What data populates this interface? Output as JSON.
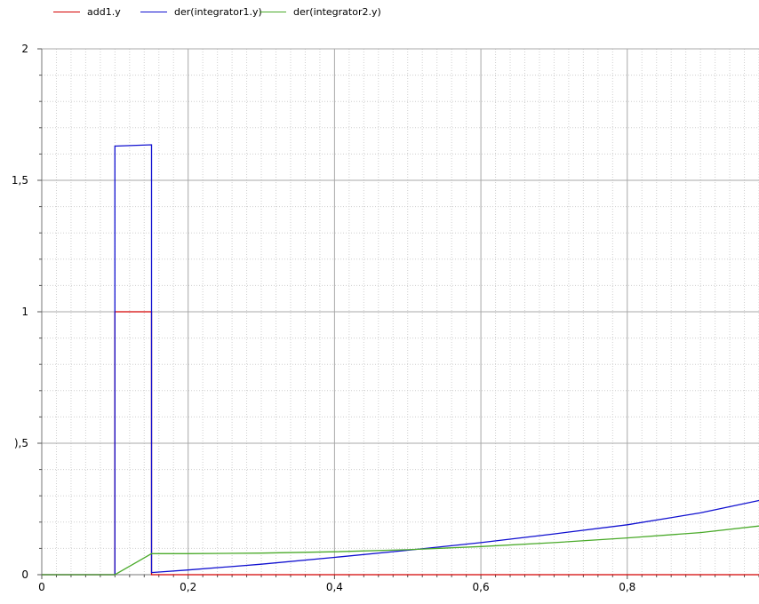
{
  "chart_data": {
    "type": "line",
    "title": "",
    "xlabel": "",
    "ylabel": "",
    "xlim": [
      0,
      0.98
    ],
    "ylim": [
      0,
      2
    ],
    "grid": true,
    "legend_position": "top-left",
    "x_ticks": [
      {
        "value": 0,
        "label": "0"
      },
      {
        "value": 0.2,
        "label": "0,2"
      },
      {
        "value": 0.4,
        "label": "0,4"
      },
      {
        "value": 0.6,
        "label": "0,6"
      },
      {
        "value": 0.8,
        "label": "0,8"
      }
    ],
    "y_ticks": [
      {
        "value": 0,
        "label": "0"
      },
      {
        "value": 0.5,
        "label": "),5"
      },
      {
        "value": 1,
        "label": "1"
      },
      {
        "value": 1.5,
        "label": "1,5"
      },
      {
        "value": 2,
        "label": "2"
      }
    ],
    "series": [
      {
        "name": "add1.y",
        "color": "#d40000",
        "x": [
          0,
          0.1,
          0.1,
          0.15,
          0.15,
          0.98
        ],
        "y": [
          0,
          0,
          1,
          1,
          0,
          0
        ]
      },
      {
        "name": "der(integrator1.y)",
        "color": "#1010d0",
        "x": [
          0,
          0.1,
          0.1,
          0.15,
          0.15,
          0.2,
          0.3,
          0.4,
          0.5,
          0.6,
          0.7,
          0.8,
          0.9,
          0.98
        ],
        "y": [
          0,
          0,
          1.63,
          1.635,
          0.008,
          0.018,
          0.04,
          0.066,
          0.093,
          0.122,
          0.155,
          0.19,
          0.235,
          0.282
        ]
      },
      {
        "name": "der(integrator2.y)",
        "color": "#4aaa2a",
        "x": [
          0,
          0.1,
          0.15,
          0.2,
          0.3,
          0.4,
          0.5,
          0.6,
          0.7,
          0.8,
          0.9,
          0.98
        ],
        "y": [
          0,
          0,
          0.08,
          0.08,
          0.082,
          0.087,
          0.095,
          0.107,
          0.122,
          0.14,
          0.16,
          0.185
        ]
      }
    ]
  }
}
